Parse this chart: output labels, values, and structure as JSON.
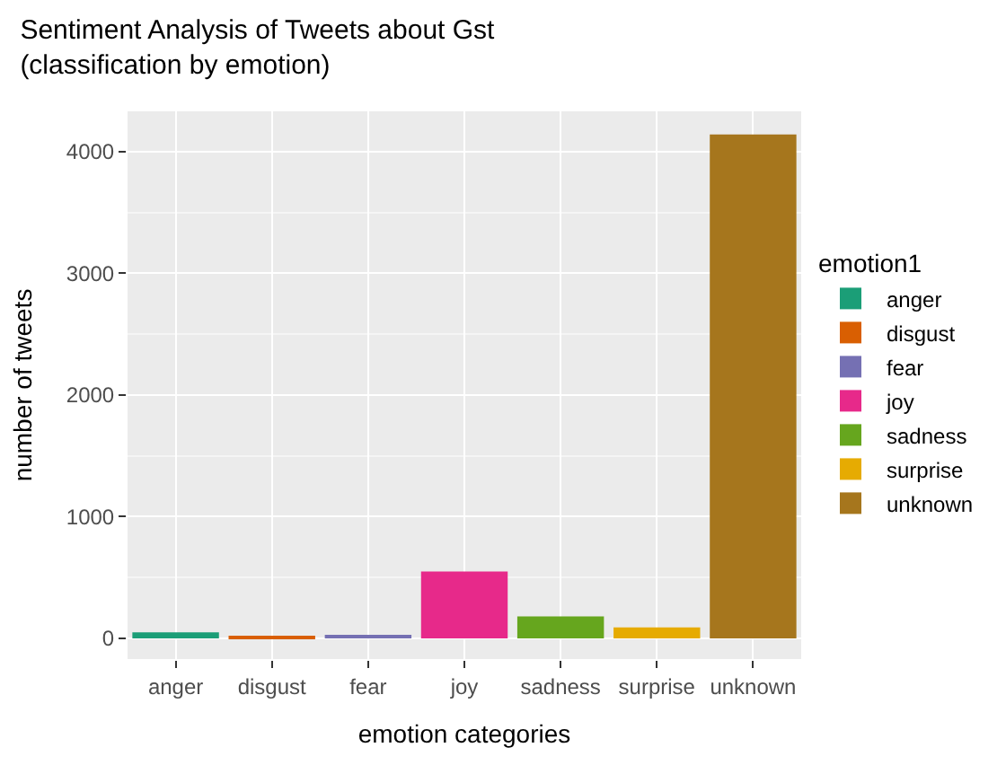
{
  "chart_data": {
    "type": "bar",
    "title": "Sentiment Analysis of Tweets about Gst\n(classification by emotion)",
    "xlabel": "emotion categories",
    "ylabel": "number of tweets",
    "legend_title": "emotion1",
    "categories": [
      "anger",
      "disgust",
      "fear",
      "joy",
      "sadness",
      "surprise",
      "unknown"
    ],
    "series": [
      {
        "name": "anger",
        "color": "#1b9e77",
        "values": [
          50,
          null,
          null,
          null,
          null,
          null,
          null
        ]
      },
      {
        "name": "disgust",
        "color": "#d95f02",
        "values": [
          null,
          20,
          null,
          null,
          null,
          null,
          null
        ]
      },
      {
        "name": "fear",
        "color": "#7570b3",
        "values": [
          null,
          null,
          30,
          null,
          null,
          null,
          null
        ]
      },
      {
        "name": "joy",
        "color": "#e7298a",
        "values": [
          null,
          null,
          null,
          550,
          null,
          null,
          null
        ]
      },
      {
        "name": "sadness",
        "color": "#66a61e",
        "values": [
          null,
          null,
          null,
          null,
          180,
          null,
          null
        ]
      },
      {
        "name": "surprise",
        "color": "#e6ab02",
        "values": [
          null,
          null,
          null,
          null,
          null,
          90,
          null
        ]
      },
      {
        "name": "unknown",
        "color": "#a6761d",
        "values": [
          null,
          null,
          null,
          null,
          null,
          null,
          4140
        ]
      }
    ],
    "ylim": [
      -170,
      4330
    ],
    "yticks": [
      0,
      1000,
      2000,
      3000,
      4000
    ],
    "grid": true,
    "legend": "right"
  }
}
